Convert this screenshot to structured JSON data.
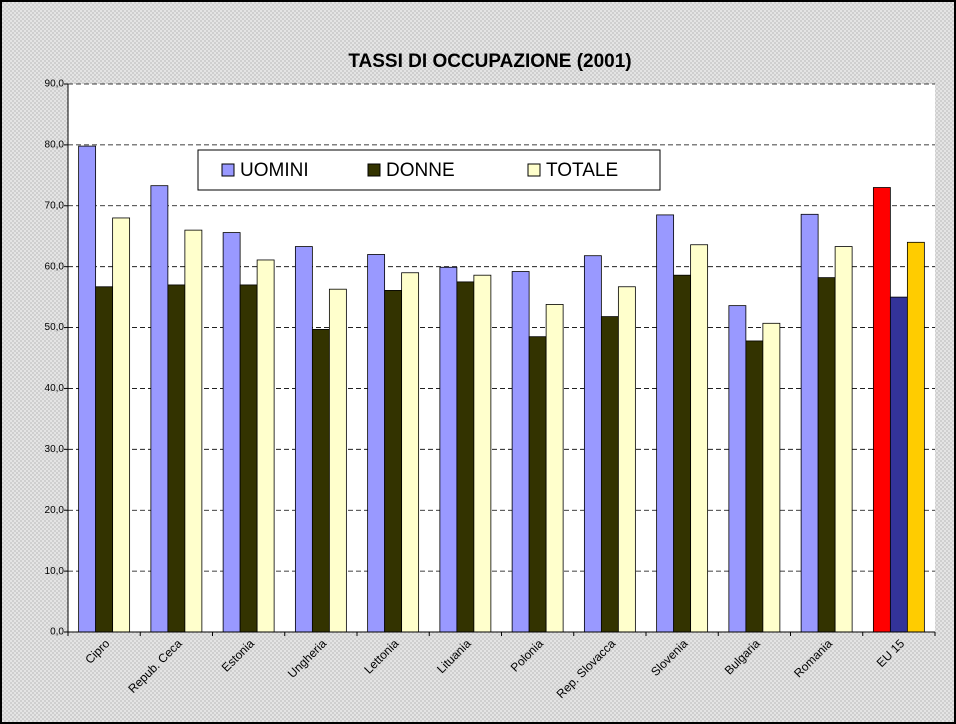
{
  "chart_data": {
    "type": "bar",
    "title": "TASSI DI OCCUPAZIONE (2001)",
    "categories": [
      "Cipro",
      "Repub. Ceca",
      "Estonia",
      "Ungheria",
      "Lettonia",
      "Lituania",
      "Polonia",
      "Rep. Slovacca",
      "Slovenia",
      "Bulgaria",
      "Romania",
      "EU 15"
    ],
    "series": [
      {
        "name": "UOMINI",
        "color": "#9999ff",
        "colors": [
          "#9999ff",
          "#9999ff",
          "#9999ff",
          "#9999ff",
          "#9999ff",
          "#9999ff",
          "#9999ff",
          "#9999ff",
          "#9999ff",
          "#9999ff",
          "#9999ff",
          "#ff0000"
        ],
        "values": [
          79.8,
          73.3,
          65.6,
          63.3,
          62.0,
          59.9,
          59.2,
          61.8,
          68.5,
          53.6,
          68.6,
          73.0
        ]
      },
      {
        "name": "DONNE",
        "color": "#333300",
        "colors": [
          "#333300",
          "#333300",
          "#333300",
          "#333300",
          "#333300",
          "#333300",
          "#333300",
          "#333300",
          "#333300",
          "#333300",
          "#333300",
          "#333399"
        ],
        "values": [
          56.7,
          57.0,
          57.0,
          49.7,
          56.1,
          57.5,
          48.5,
          51.8,
          58.6,
          47.8,
          58.2,
          55.0
        ]
      },
      {
        "name": "TOTALE",
        "color": "#ffffcc",
        "colors": [
          "#ffffcc",
          "#ffffcc",
          "#ffffcc",
          "#ffffcc",
          "#ffffcc",
          "#ffffcc",
          "#ffffcc",
          "#ffffcc",
          "#ffffcc",
          "#ffffcc",
          "#ffffcc",
          "#ffcc00"
        ],
        "values": [
          68.0,
          66.0,
          61.1,
          56.3,
          59.0,
          58.6,
          53.8,
          56.7,
          63.6,
          50.7,
          63.3,
          64.0
        ]
      }
    ],
    "ylim": [
      0,
      90
    ],
    "yticks": [
      {
        "value": 0,
        "label": "0,0"
      },
      {
        "value": 10,
        "label": "10,0"
      },
      {
        "value": 20,
        "label": "20,0"
      },
      {
        "value": 30,
        "label": "30,0"
      },
      {
        "value": 40,
        "label": "40,0"
      },
      {
        "value": 50,
        "label": "50,0"
      },
      {
        "value": 60,
        "label": "60,0"
      },
      {
        "value": 70,
        "label": "70,0"
      },
      {
        "value": 80,
        "label": "80,0"
      },
      {
        "value": 90,
        "label": "90,0"
      }
    ],
    "grid": true,
    "legend": "top"
  }
}
